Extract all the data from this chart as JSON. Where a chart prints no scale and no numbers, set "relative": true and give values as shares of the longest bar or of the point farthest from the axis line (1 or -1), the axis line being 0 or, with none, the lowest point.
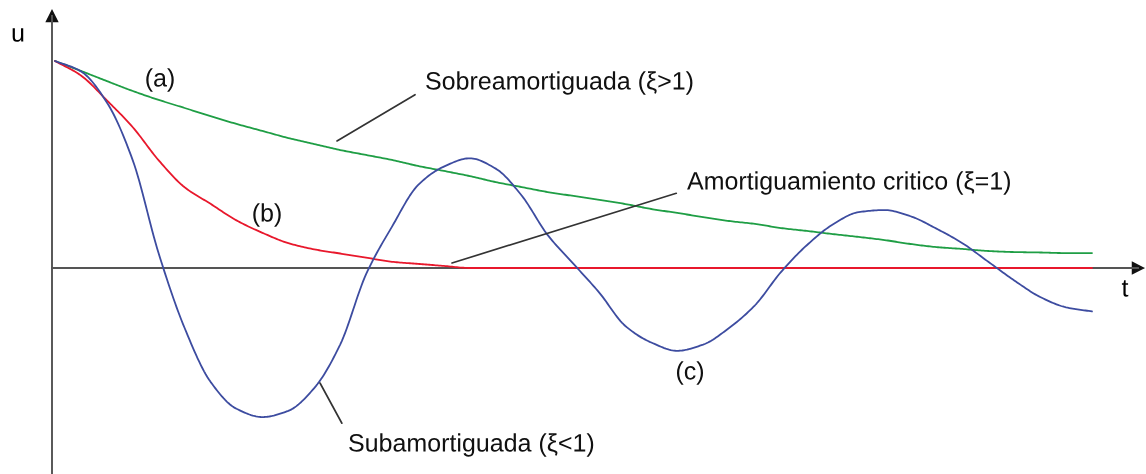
{
  "chart_data": {
    "type": "line",
    "relative": true,
    "xlabel": "t",
    "ylabel": "u",
    "categories": [
      null,
      null,
      null,
      null,
      null,
      null,
      null,
      null,
      null,
      null,
      null,
      null,
      null,
      null,
      null,
      null,
      null,
      null,
      null,
      null,
      null,
      null,
      null,
      null,
      null,
      null,
      null,
      null,
      null,
      null,
      null,
      null,
      null,
      null,
      null,
      null,
      null,
      null,
      null,
      null,
      null
    ],
    "series": [
      {
        "color": "#1f9e45",
        "values": [
          1.0,
          0.952,
          0.903,
          0.855,
          0.812,
          0.773,
          0.734,
          0.696,
          0.662,
          0.628,
          0.599,
          0.57,
          0.546,
          0.522,
          0.493,
          0.469,
          0.444,
          0.415,
          0.391,
          0.367,
          0.348,
          0.329,
          0.309,
          0.285,
          0.266,
          0.246,
          0.227,
          0.213,
          0.193,
          0.179,
          0.164,
          0.15,
          0.135,
          0.116,
          0.101,
          0.092,
          0.082,
          0.077,
          0.075,
          0.072,
          0.072
        ]
      },
      {
        "color": "#e8182c",
        "values": [
          1.0,
          0.93,
          0.81,
          0.68,
          0.52,
          0.39,
          0.31,
          0.23,
          0.17,
          0.12,
          0.09,
          0.07,
          0.05,
          0.03,
          0.02,
          0.01,
          0.0,
          0.0,
          0.0,
          0.0,
          0.0,
          0.0,
          0.0,
          0.0,
          0.0,
          0.0,
          0.0,
          0.0,
          0.0,
          0.0,
          0.0,
          0.0,
          0.0,
          0.0,
          0.0,
          0.0,
          0.0,
          0.0,
          0.0,
          0.0,
          0.0
        ]
      },
      {
        "color": "#3d4ca0",
        "values": [
          1.0,
          0.95,
          0.8,
          0.52,
          0.07,
          -0.29,
          -0.55,
          -0.68,
          -0.72,
          -0.69,
          -0.58,
          -0.37,
          -0.03,
          0.2,
          0.4,
          0.49,
          0.53,
          0.48,
          0.35,
          0.16,
          0.02,
          -0.12,
          -0.28,
          -0.36,
          -0.4,
          -0.37,
          -0.29,
          -0.18,
          -0.02,
          0.11,
          0.21,
          0.27,
          0.28,
          0.25,
          0.19,
          0.12,
          0.03,
          -0.06,
          -0.14,
          -0.19,
          -0.21
        ]
      }
    ],
    "annotations": [
      "(a)",
      "(b)",
      "(c)",
      "Sobreamortiguada (ξ>1)",
      "Amortiguamiento critico (ξ=1)",
      "Subamortiguada (ξ<1)"
    ]
  }
}
